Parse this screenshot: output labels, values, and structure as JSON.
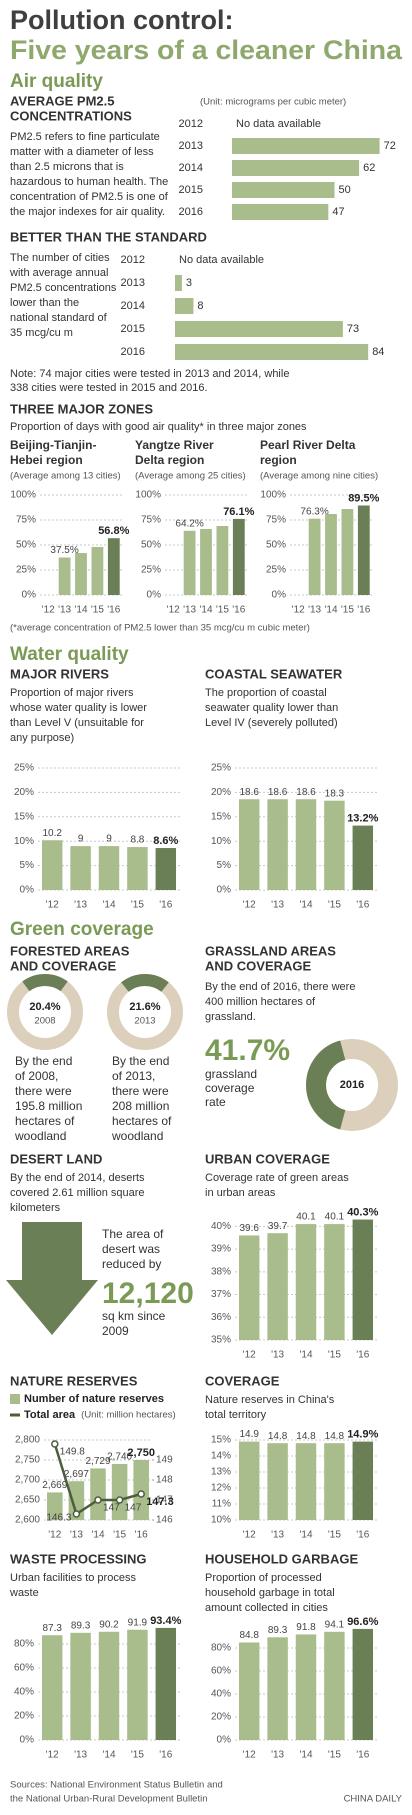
{
  "title": [
    "Pollution control:",
    "Five years of a cleaner China"
  ],
  "sections": [
    "Air quality",
    "Water quality",
    "Green coverage"
  ],
  "zones": {
    "title": "THREE MAJOR ZONES",
    "subtitle": "Proportion of days with good air quality* in three major zones",
    "footnote": "(*average concentration of PM2.5 lower than 35 mcg/cu m cubic meter)"
  },
  "desert": {
    "title": "DESERT LAND",
    "description": [
      "By the end of 2014, deserts",
      "covered 2.61 million square",
      "kilometers"
    ],
    "callout": [
      "The area of",
      "desert was",
      "reduced by"
    ],
    "figure": "12,120",
    "unit": [
      "sq km since",
      "2009"
    ]
  },
  "sources": [
    "Sources: National Environment Status Bulletin and",
    "the National Urban-Rural Development Bulletin"
  ],
  "credit": "CHINA DAILY",
  "chart_data": [
    {
      "type": "hbar",
      "title": [
        "AVERAGE PM2.5",
        "CONCENTRATIONS"
      ],
      "description": [
        "PM2.5 refers to fine particulate",
        "matter with a diameter of less",
        "than 2.5 microns that is",
        "hazardous to human health. The",
        "concentration of PM2.5 is one of",
        "the major indexes for air quality."
      ],
      "unit": "(Unit: micrograms per cubic meter)",
      "categories": [
        "2012",
        "2013",
        "2014",
        "2015",
        "2016"
      ],
      "values": [
        null,
        72,
        62,
        50,
        47
      ],
      "missing_label": "No data available",
      "color": "#a8bd8b"
    },
    {
      "type": "hbar",
      "title": [
        "BETTER THAN THE STANDARD"
      ],
      "description": [
        "The number of cities",
        "with average annual",
        "PM2.5 concentrations",
        "lower than the",
        "national standard of",
        "35 mcg/cu m"
      ],
      "categories": [
        "2012",
        "2013",
        "2014",
        "2015",
        "2016"
      ],
      "values": [
        null,
        3,
        8,
        73,
        84
      ],
      "missing_label": "No data available",
      "note": [
        "Note: 74 major cities were tested in 2013 and 2014, while",
        "338 cities were tested in 2015 and 2016."
      ],
      "color": "#a8bd8b"
    },
    {
      "type": "bar",
      "title": [
        "Beijing-Tianjin-",
        "Hebei region"
      ],
      "subtitle": "(Average among 13 cities)",
      "categories": [
        "'12",
        "'13",
        "'14",
        "'15",
        "'16"
      ],
      "values": [
        null,
        37.5,
        42,
        48,
        56.8
      ],
      "value_labels": [
        null,
        "37.5%",
        null,
        null,
        "56.8%"
      ],
      "ylim": [
        0,
        100
      ],
      "yticks": [
        {
          "value": 0,
          "label": "0%"
        },
        {
          "value": 25,
          "label": "25%"
        },
        {
          "value": 50,
          "label": "50%"
        },
        {
          "value": 75,
          "label": "75%"
        },
        {
          "value": 100,
          "label": "100%"
        }
      ],
      "grid": true,
      "color": "#a8bd8b",
      "highlight_color": "#6b7f56"
    },
    {
      "type": "bar",
      "title": [
        "Yangtze River",
        "Delta region"
      ],
      "subtitle": "(Average among 25 cities)",
      "categories": [
        "'12",
        "'13",
        "'14",
        "'15",
        "'16"
      ],
      "values": [
        null,
        64.2,
        66,
        69,
        76.1
      ],
      "value_labels": [
        null,
        "64.2%",
        null,
        null,
        "76.1%"
      ],
      "ylim": [
        0,
        100
      ],
      "yticks": [
        {
          "value": 0,
          "label": "0%"
        },
        {
          "value": 25,
          "label": "25%"
        },
        {
          "value": 50,
          "label": "50%"
        },
        {
          "value": 75,
          "label": "75%"
        },
        {
          "value": 100,
          "label": "100%"
        }
      ],
      "grid": true,
      "color": "#a8bd8b",
      "highlight_color": "#6b7f56"
    },
    {
      "type": "bar",
      "title": [
        "Pearl River Delta",
        "region"
      ],
      "subtitle": "(Average among nine cities)",
      "categories": [
        "'12",
        "'13",
        "'14",
        "'15",
        "'16"
      ],
      "values": [
        null,
        76.3,
        81,
        86,
        89.5
      ],
      "value_labels": [
        null,
        "76.3%",
        null,
        null,
        "89.5%"
      ],
      "ylim": [
        0,
        100
      ],
      "yticks": [
        {
          "value": 0,
          "label": "0%"
        },
        {
          "value": 25,
          "label": "25%"
        },
        {
          "value": 50,
          "label": "50%"
        },
        {
          "value": 75,
          "label": "75%"
        },
        {
          "value": 100,
          "label": "100%"
        }
      ],
      "grid": true,
      "color": "#a8bd8b",
      "highlight_color": "#6b7f56"
    },
    {
      "type": "bar",
      "title": [
        "MAJOR RIVERS"
      ],
      "description": [
        "Proportion of major rivers",
        "whose water quality is lower",
        "than Level V (unsuitable for",
        "any purpose)"
      ],
      "categories": [
        "'12",
        "'13",
        "'14",
        "'15",
        "'16"
      ],
      "values": [
        10.2,
        9,
        9,
        8.8,
        8.6
      ],
      "value_labels": [
        "10.2",
        "9",
        "9",
        "8.8",
        "8.6%"
      ],
      "ylim": [
        0,
        25
      ],
      "yticks": [
        {
          "value": 0,
          "label": "0%"
        },
        {
          "value": 5,
          "label": "5%"
        },
        {
          "value": 10,
          "label": "10%"
        },
        {
          "value": 15,
          "label": "15%"
        },
        {
          "value": 20,
          "label": "20%"
        },
        {
          "value": 25,
          "label": "25%"
        }
      ],
      "grid": true,
      "color": "#a8bd8b",
      "highlight_color": "#6b7f56"
    },
    {
      "type": "bar",
      "title": [
        "COASTAL SEAWATER"
      ],
      "description": [
        "The proportion of coastal",
        "seawater quality lower than",
        "Level IV (severely polluted)"
      ],
      "categories": [
        "'12",
        "'13",
        "'14",
        "'15",
        "'16"
      ],
      "values": [
        18.6,
        18.6,
        18.6,
        18.3,
        13.2
      ],
      "value_labels": [
        "18.6",
        "18.6",
        "18.6",
        "18.3",
        "13.2%"
      ],
      "ylim": [
        0,
        25
      ],
      "yticks": [
        {
          "value": 0,
          "label": "0%"
        },
        {
          "value": 5,
          "label": "5%"
        },
        {
          "value": 10,
          "label": "10%"
        },
        {
          "value": 15,
          "label": "15%"
        },
        {
          "value": 20,
          "label": "20%"
        },
        {
          "value": 25,
          "label": "25%"
        }
      ],
      "grid": true,
      "color": "#a8bd8b",
      "highlight_color": "#6b7f56"
    },
    {
      "type": "donut",
      "title": [
        "FORESTED AREAS",
        "AND COVERAGE"
      ],
      "categories": [
        "2008",
        "2013"
      ],
      "values": [
        20.4,
        21.6
      ],
      "value_labels": [
        "20.4%",
        "21.6%"
      ],
      "descriptions": [
        [
          "By the end",
          "of 2008,",
          "there were",
          "195.8 million",
          "hectares of",
          "woodland"
        ],
        [
          "By the end",
          "of 2013,",
          "there were",
          "208 million",
          "hectares of",
          "woodland"
        ]
      ],
      "color": "#6b7f56",
      "track_color": "#dcd0bc"
    },
    {
      "type": "donut",
      "title": [
        "GRASSLAND AREAS",
        "AND COVERAGE"
      ],
      "description": [
        "By the end of 2016, there were",
        "400 million hectares of",
        "grassland."
      ],
      "categories": [
        "2016"
      ],
      "values": [
        41.7
      ],
      "value_labels": [
        "41.7%"
      ],
      "caption": [
        "grassland",
        "coverage",
        "rate"
      ],
      "color": "#6b7f56",
      "track_color": "#dcd0bc"
    },
    {
      "type": "bar",
      "title": [
        "URBAN COVERAGE"
      ],
      "description": [
        "Coverage rate of green areas",
        "in urban areas"
      ],
      "categories": [
        "'12",
        "'13",
        "'14",
        "'15",
        "'16"
      ],
      "values": [
        39.6,
        39.7,
        40.1,
        40.1,
        40.3
      ],
      "value_labels": [
        "39.6",
        "39.7",
        "40.1",
        "40.1",
        "40.3%"
      ],
      "ylim": [
        35,
        40.5
      ],
      "yticks": [
        {
          "value": 35,
          "label": "35%"
        },
        {
          "value": 36,
          "label": "36%"
        },
        {
          "value": 37,
          "label": "37%"
        },
        {
          "value": 38,
          "label": "38%"
        },
        {
          "value": 39,
          "label": "39%"
        },
        {
          "value": 40,
          "label": "40%"
        }
      ],
      "grid": true,
      "color": "#a8bd8b",
      "highlight_color": "#6b7f56"
    },
    {
      "type": "combo",
      "title": [
        "NATURE RESERVES"
      ],
      "categories": [
        "'12",
        "'13",
        "'14",
        "'15",
        "'16"
      ],
      "series": [
        {
          "name": "Number of nature reserves",
          "color": "#a8bd8b",
          "values": [
            2669,
            2697,
            2729,
            2740,
            2750
          ],
          "value_labels": [
            "2,669",
            "2,697",
            "2,729",
            "2,740",
            "2,750"
          ]
        },
        {
          "name": "Total area",
          "axis": "y2",
          "color": "#4d5e3d",
          "values": [
            149.8,
            146.3,
            147,
            147,
            147.3
          ]
        }
      ],
      "y2label": "(Unit: million hectares)",
      "ylim": [
        2600,
        2800
      ],
      "yticks": [
        {
          "value": 2600,
          "label": "2,600"
        },
        {
          "value": 2650,
          "label": "2,650"
        },
        {
          "value": 2700,
          "label": "2,700"
        },
        {
          "value": 2750,
          "label": "2,750"
        },
        {
          "value": 2800,
          "label": "2,800"
        }
      ],
      "y2lim": [
        146,
        150
      ],
      "y2ticks": [
        146,
        147,
        148,
        149
      ],
      "grid": true
    },
    {
      "type": "bar",
      "title": [
        "COVERAGE"
      ],
      "description": [
        "Nature reserves in China's",
        "total territory"
      ],
      "categories": [
        "'12",
        "'13",
        "'14",
        "'15",
        "'16"
      ],
      "values": [
        14.9,
        14.8,
        14.8,
        14.8,
        14.9
      ],
      "value_labels": [
        "14.9",
        "14.8",
        "14.8",
        "14.8",
        "14.9%"
      ],
      "ylim": [
        10,
        15
      ],
      "yticks": [
        {
          "value": 10,
          "label": "10%"
        },
        {
          "value": 11,
          "label": "11%"
        },
        {
          "value": 12,
          "label": "12%"
        },
        {
          "value": 13,
          "label": "13%"
        },
        {
          "value": 14,
          "label": "14%"
        },
        {
          "value": 15,
          "label": "15%"
        }
      ],
      "grid": true,
      "color": "#a8bd8b",
      "highlight_color": "#6b7f56"
    },
    {
      "type": "bar",
      "title": [
        "WASTE PROCESSING"
      ],
      "description": [
        "Urban facilities to process",
        "waste"
      ],
      "categories": [
        "'12",
        "'13",
        "'14",
        "'15",
        "'16"
      ],
      "values": [
        87.3,
        89.3,
        90.2,
        91.9,
        93.4
      ],
      "value_labels": [
        "87.3",
        "89.3",
        "90.2",
        "91.9",
        "93.4%"
      ],
      "ylim": [
        0,
        100
      ],
      "yticks": [
        {
          "value": 0,
          "label": "0%"
        },
        {
          "value": 20,
          "label": "20%"
        },
        {
          "value": 40,
          "label": "40%"
        },
        {
          "value": 60,
          "label": "60%"
        },
        {
          "value": 80,
          "label": "80%"
        }
      ],
      "grid": true,
      "color": "#a8bd8b",
      "highlight_color": "#6b7f56"
    },
    {
      "type": "bar",
      "title": [
        "HOUSEHOLD GARBAGE"
      ],
      "description": [
        "Proportion of processed",
        "household garbage in total",
        "amount collected in cities"
      ],
      "categories": [
        "'12",
        "'13",
        "'14",
        "'15",
        "'16"
      ],
      "values": [
        84.8,
        89.3,
        91.8,
        94.1,
        96.6
      ],
      "value_labels": [
        "84.8",
        "89.3",
        "91.8",
        "94.1",
        "96.6%"
      ],
      "ylim": [
        0,
        100
      ],
      "yticks": [
        {
          "value": 0,
          "label": "0%"
        },
        {
          "value": 20,
          "label": "20%"
        },
        {
          "value": 40,
          "label": "40%"
        },
        {
          "value": 60,
          "label": "60%"
        },
        {
          "value": 80,
          "label": "80%"
        }
      ],
      "grid": true,
      "color": "#a8bd8b",
      "highlight_color": "#6b7f56"
    }
  ]
}
